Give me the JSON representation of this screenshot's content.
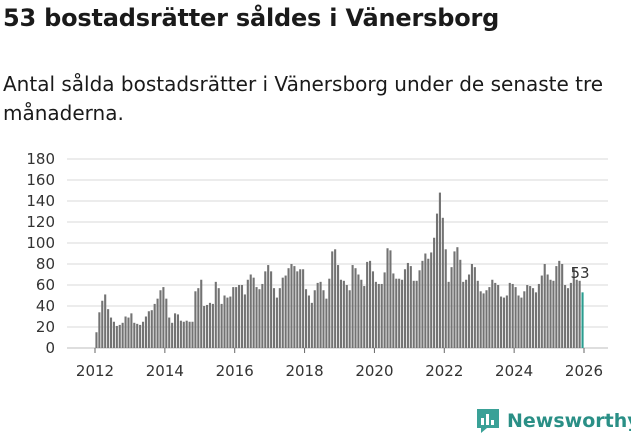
{
  "header": {
    "title": "53 bostadsrätter såldes i Vänersborg",
    "subtitle": "Antal sålda bostadsrätter i Vänersborg under de senaste tre månaderna."
  },
  "brand": {
    "name": "Newsworthy"
  },
  "colors": {
    "bar": "#737373",
    "highlight": "#2a9d8f",
    "grid": "#d9d9d9",
    "brand": "#2a8f86"
  },
  "chart_data": {
    "type": "bar",
    "title": "53 bostadsrätter såldes i Vänersborg",
    "subtitle": "Antal sålda bostadsrätter i Vänersborg under de senaste tre månaderna.",
    "xlabel": "",
    "ylabel": "",
    "ylim": [
      0,
      180
    ],
    "yticks": [
      0,
      20,
      40,
      60,
      80,
      100,
      120,
      140,
      160,
      180
    ],
    "xticks": [
      2012,
      2014,
      2016,
      2018,
      2020,
      2022,
      2024,
      2026
    ],
    "x_start": "2012-01",
    "x_end": "2025-12",
    "grid": true,
    "highlight_label": "53",
    "values": [
      15,
      34,
      45,
      51,
      37,
      29,
      25,
      21,
      22,
      24,
      30,
      29,
      33,
      24,
      23,
      22,
      25,
      30,
      35,
      36,
      42,
      47,
      55,
      58,
      47,
      29,
      24,
      33,
      32,
      26,
      25,
      26,
      25,
      25,
      54,
      57,
      65,
      40,
      41,
      43,
      42,
      63,
      57,
      42,
      50,
      48,
      49,
      58,
      58,
      60,
      60,
      51,
      65,
      70,
      67,
      58,
      56,
      61,
      73,
      79,
      73,
      57,
      48,
      57,
      67,
      69,
      76,
      80,
      78,
      73,
      75,
      75,
      56,
      50,
      43,
      55,
      62,
      63,
      55,
      47,
      66,
      92,
      94,
      79,
      65,
      64,
      60,
      55,
      79,
      76,
      70,
      65,
      59,
      82,
      83,
      73,
      63,
      61,
      61,
      72,
      95,
      93,
      71,
      66,
      66,
      65,
      75,
      81,
      78,
      64,
      64,
      74,
      83,
      90,
      85,
      91,
      105,
      128,
      148,
      124,
      94,
      63,
      77,
      92,
      96,
      84,
      63,
      65,
      70,
      80,
      77,
      64,
      54,
      52,
      55,
      58,
      65,
      62,
      60,
      49,
      48,
      50,
      62,
      61,
      58,
      50,
      48,
      54,
      60,
      59,
      57,
      53,
      61,
      69,
      80,
      70,
      65,
      64,
      78,
      83,
      80,
      60,
      57,
      62,
      76,
      65,
      64,
      53
    ]
  }
}
